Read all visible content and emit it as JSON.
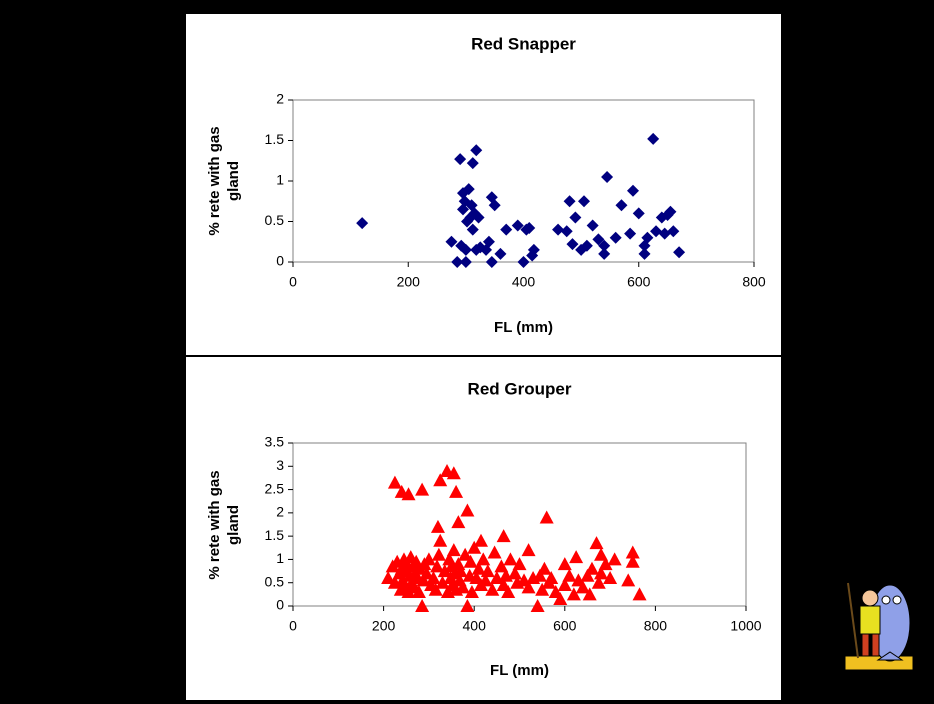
{
  "chart_data": [
    {
      "type": "scatter",
      "title": "Red Snapper",
      "x_label": "FL (mm)",
      "y_label": [
        "% rete with gas",
        "gland"
      ],
      "marker": "diamond",
      "color": "#000080",
      "x": [
        120,
        275,
        285,
        290,
        292,
        295,
        295,
        298,
        300,
        302,
        305,
        308,
        310,
        312,
        312,
        315,
        318,
        318,
        322,
        325,
        300,
        335,
        340,
        345,
        345,
        350,
        360,
        370,
        390,
        400,
        405,
        410,
        415,
        418,
        460,
        475,
        480,
        485,
        490,
        500,
        505,
        510,
        520,
        530,
        540,
        540,
        545,
        560,
        570,
        585,
        590,
        600,
        610,
        610,
        615,
        625,
        630,
        640,
        645,
        650,
        655,
        660,
        670
      ],
      "values": [
        0.48,
        0.25,
        0.0,
        1.27,
        0.2,
        0.85,
        0.65,
        0.75,
        0.0,
        0.5,
        0.9,
        0.55,
        0.7,
        0.4,
        1.22,
        0.6,
        1.38,
        0.15,
        0.55,
        0.18,
        0.15,
        0.15,
        0.25,
        0.0,
        0.8,
        0.7,
        0.1,
        0.4,
        0.45,
        0.0,
        0.4,
        0.42,
        0.08,
        0.15,
        0.4,
        0.38,
        0.75,
        0.22,
        0.55,
        0.15,
        0.75,
        0.2,
        0.45,
        0.28,
        0.2,
        0.1,
        1.05,
        0.3,
        0.7,
        0.35,
        0.88,
        0.6,
        0.2,
        0.1,
        0.3,
        1.52,
        0.38,
        0.55,
        0.35,
        0.58,
        0.62,
        0.38,
        0.12
      ],
      "xlim": [
        0,
        800
      ],
      "xticks": [
        0,
        200,
        400,
        600,
        800
      ],
      "ylim": [
        0,
        2
      ],
      "yticks": [
        0,
        0.5,
        1,
        1.5,
        2
      ]
    },
    {
      "type": "scatter",
      "title": "Red Grouper",
      "x_label": "FL (mm)",
      "y_label": [
        "% rete with gas",
        "gland"
      ],
      "marker": "triangle",
      "color": "#ff0000",
      "x": [
        210,
        220,
        225,
        225,
        230,
        235,
        238,
        240,
        240,
        242,
        245,
        248,
        250,
        252,
        255,
        255,
        258,
        260,
        262,
        265,
        268,
        270,
        272,
        275,
        278,
        280,
        285,
        285,
        288,
        290,
        295,
        300,
        305,
        310,
        315,
        318,
        320,
        322,
        325,
        325,
        330,
        335,
        340,
        342,
        345,
        348,
        350,
        352,
        355,
        355,
        358,
        360,
        360,
        365,
        365,
        368,
        370,
        375,
        380,
        385,
        385,
        390,
        392,
        395,
        400,
        405,
        410,
        415,
        415,
        420,
        425,
        430,
        440,
        445,
        450,
        460,
        465,
        465,
        470,
        475,
        480,
        490,
        495,
        500,
        510,
        520,
        520,
        530,
        540,
        545,
        550,
        555,
        560,
        565,
        570,
        580,
        590,
        600,
        600,
        610,
        620,
        625,
        630,
        640,
        650,
        655,
        660,
        670,
        675,
        680,
        680,
        690,
        700,
        710,
        740,
        750,
        750,
        765
      ],
      "values": [
        0.6,
        0.85,
        0.5,
        2.65,
        0.95,
        0.7,
        0.35,
        2.45,
        0.8,
        0.55,
        1.0,
        0.4,
        0.75,
        0.9,
        2.4,
        0.3,
        0.65,
        1.05,
        0.5,
        0.85,
        0.4,
        0.7,
        0.95,
        0.6,
        0.3,
        0.8,
        2.5,
        0.0,
        0.55,
        0.9,
        0.7,
        1.0,
        0.45,
        0.6,
        0.35,
        0.85,
        1.7,
        1.1,
        2.7,
        1.4,
        0.5,
        0.75,
        2.9,
        0.3,
        1.0,
        0.6,
        0.85,
        0.45,
        2.85,
        1.2,
        0.7,
        2.45,
        0.35,
        1.8,
        0.9,
        0.55,
        0.75,
        0.4,
        1.1,
        2.05,
        0.0,
        0.65,
        0.95,
        0.3,
        1.25,
        0.6,
        0.8,
        1.4,
        0.45,
        1.0,
        0.55,
        0.75,
        0.35,
        1.15,
        0.6,
        0.85,
        1.5,
        0.45,
        0.65,
        0.3,
        1.0,
        0.7,
        0.5,
        0.9,
        0.55,
        1.2,
        0.4,
        0.6,
        0.0,
        0.65,
        0.35,
        0.8,
        1.9,
        0.5,
        0.6,
        0.3,
        0.15,
        0.9,
        0.45,
        0.65,
        0.25,
        1.05,
        0.55,
        0.4,
        0.65,
        0.25,
        0.8,
        1.35,
        0.5,
        1.1,
        0.7,
        0.9,
        0.6,
        1.0,
        0.55,
        1.15,
        0.95,
        0.25
      ],
      "xlim": [
        0,
        1000
      ],
      "xticks": [
        0,
        200,
        400,
        600,
        800,
        1000
      ],
      "ylim": [
        0,
        3.5
      ],
      "yticks": [
        0,
        0.5,
        1,
        1.5,
        2,
        2.5,
        3,
        3.5
      ]
    }
  ]
}
